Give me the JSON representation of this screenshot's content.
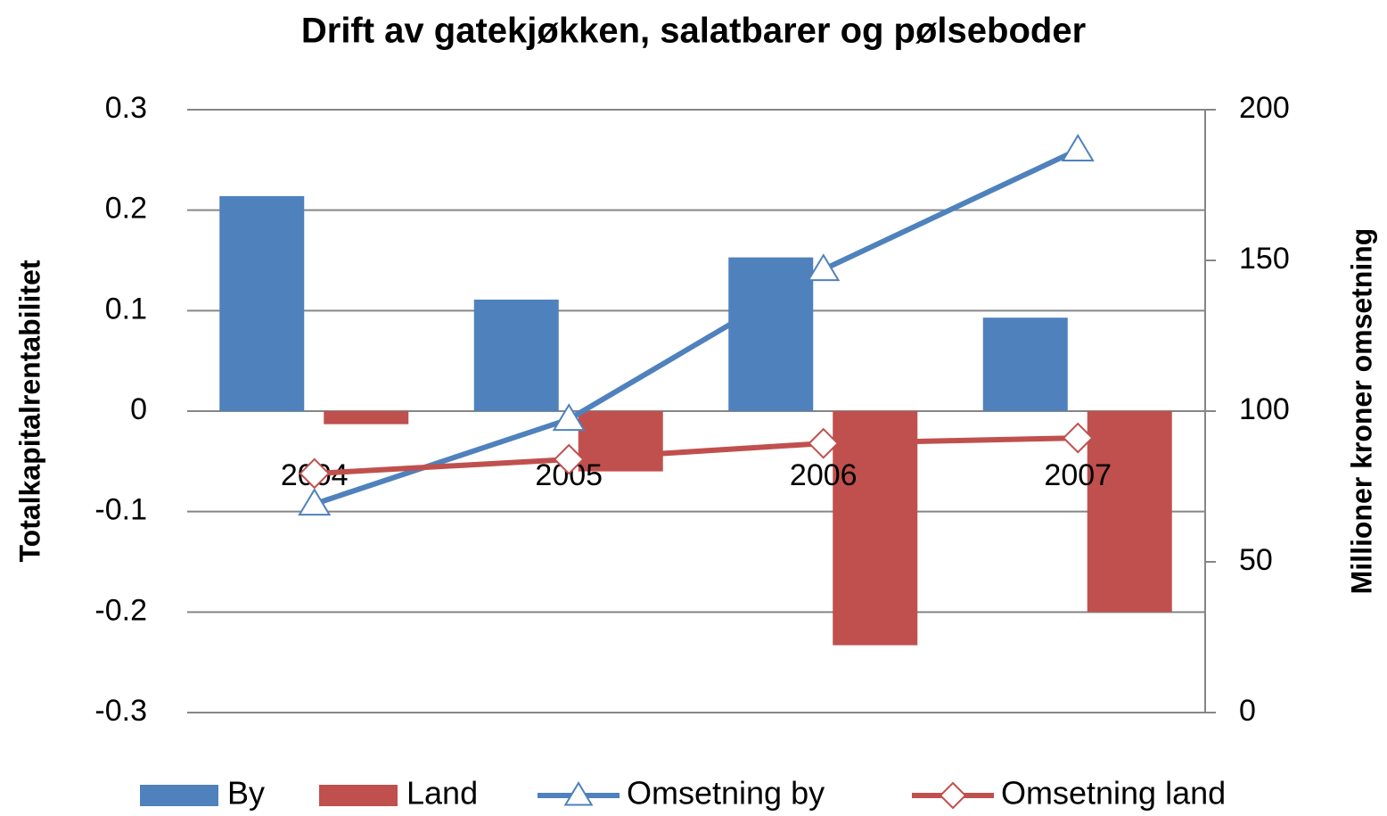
{
  "chart_data": {
    "type": "bar-line",
    "title": "Drift av gatekjøkken, salatbarer og pølseboder",
    "ylabel": "Totalkapitalrentabilitet",
    "y2label": "Millioner kroner omsetning",
    "categories": [
      "2004",
      "2005",
      "2006",
      "2007"
    ],
    "series": [
      {
        "name": "By",
        "type": "bar",
        "color": "#4f81bd",
        "values": [
          0.214,
          0.111,
          0.153,
          0.093
        ]
      },
      {
        "name": "Land",
        "type": "bar",
        "color": "#c0504d",
        "values": [
          -0.013,
          -0.06,
          -0.233,
          -0.2
        ]
      },
      {
        "name": "Omsetning by",
        "type": "line",
        "axis": "y2",
        "marker": "triangle",
        "color": "#4f81bd",
        "values": [
          69.2,
          97.3,
          147,
          186.7
        ]
      },
      {
        "name": "Omsetning land",
        "type": "line",
        "axis": "y2",
        "marker": "diamond",
        "color": "#c0504d",
        "values": [
          79.3,
          84,
          89.3,
          91.1
        ]
      }
    ],
    "ylim": [
      -0.3,
      0.3
    ],
    "yticks": [
      -0.3,
      -0.2,
      -0.1,
      0,
      0.1,
      0.2,
      0.3
    ],
    "y2lim": [
      0,
      200
    ],
    "y2ticks": [
      0,
      50,
      100,
      150,
      200
    ],
    "grid": true,
    "legend": "bottom"
  }
}
